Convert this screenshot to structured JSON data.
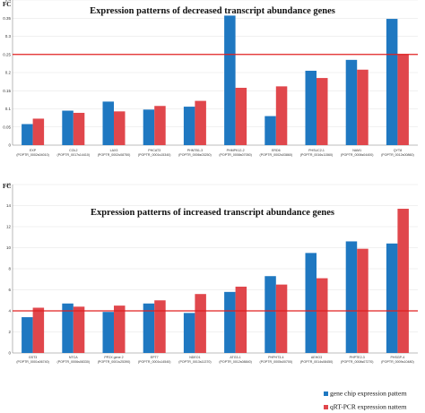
{
  "colors": {
    "chip": "#1f78c1",
    "pcr": "#e0474c",
    "threshold": "#e02020",
    "axis": "#888888"
  },
  "legend": {
    "chip": "gene chip expression pattern",
    "pcr": "qRT-PCR expression nattern"
  },
  "chart_data": [
    {
      "type": "bar",
      "title": "Expression patterns of decreased transcript abundance genes",
      "ylabel": "FC",
      "ylim": [
        0,
        0.4
      ],
      "yticks": [
        "0",
        "0.05",
        "0.1",
        "0.15",
        "0.2",
        "0.25",
        "0.3",
        "0.35",
        "0.4"
      ],
      "threshold": 0.25,
      "categories": [
        {
          "name": "EXP",
          "id": "(POPTR_0002s04010)"
        },
        {
          "name": "COL2",
          "id": "(POPTR_0017s14410)"
        },
        {
          "name": "LAX3",
          "id": "(POPTR_0002s08750)"
        },
        {
          "name": "PHCAT3",
          "id": "(POPTR_0001s15340)"
        },
        {
          "name": "PHNTB1-3",
          "id": "(POPTR_0006s03250)"
        },
        {
          "name": "PHMPK12-2",
          "id": "(POPTR_0008s07050)"
        },
        {
          "name": "ERD6",
          "id": "(POPTR_0002s03860)"
        },
        {
          "name": "PHSUC2-1",
          "id": "(POPTR_0016s11560)"
        },
        {
          "name": "NAM1",
          "id": "(POPTR_0006s04400)"
        },
        {
          "name": "QYT8",
          "id": "(POPTR_0012s00860)"
        }
      ],
      "series": [
        {
          "key": "chip",
          "values": [
            0.058,
            0.095,
            0.12,
            0.098,
            0.106,
            0.357,
            0.08,
            0.205,
            0.235,
            0.348
          ]
        },
        {
          "key": "pcr",
          "values": [
            0.073,
            0.089,
            0.093,
            0.108,
            0.122,
            0.158,
            0.162,
            0.185,
            0.208,
            0.251
          ]
        }
      ]
    },
    {
      "type": "bar",
      "title": "Expression patterns of increased transcript abundance genes",
      "ylabel": "FC",
      "ylim": [
        0,
        16
      ],
      "yticks": [
        "0",
        "2",
        "4",
        "6",
        "8",
        "10",
        "12",
        "14",
        "16"
      ],
      "threshold": 4,
      "categories": [
        {
          "name": "GST3",
          "id": "(POPTR_0001s06740)"
        },
        {
          "name": "NTCA",
          "id": "(POPTR_0006s08330)"
        },
        {
          "name": "PP2X gene 2",
          "id": "(POPTR_0001s25390)"
        },
        {
          "name": "EPT7",
          "id": "(POPTR_0001s14540)"
        },
        {
          "name": "NDEO1",
          "id": "(POPTR_0013s11370)"
        },
        {
          "name": "ATG3-1",
          "id": "(POPTR_0012s08840)"
        },
        {
          "name": "PHPHT3-4",
          "id": "(POPTR_0005s00700)"
        },
        {
          "name": "AEHO3",
          "id": "(POPTR_0014s08450)"
        },
        {
          "name": "PHPTE2-3",
          "id": "(POPTR_0008s07270)"
        },
        {
          "name": "PHSGP-4",
          "id": "(POPTR_0009s10480)"
        }
      ],
      "series": [
        {
          "key": "chip",
          "values": [
            3.4,
            4.7,
            3.9,
            4.7,
            3.8,
            5.8,
            7.3,
            9.5,
            10.6,
            10.4
          ]
        },
        {
          "key": "pcr",
          "values": [
            4.3,
            4.4,
            4.5,
            5.0,
            5.6,
            6.3,
            6.5,
            7.1,
            9.9,
            13.7
          ]
        }
      ]
    }
  ]
}
